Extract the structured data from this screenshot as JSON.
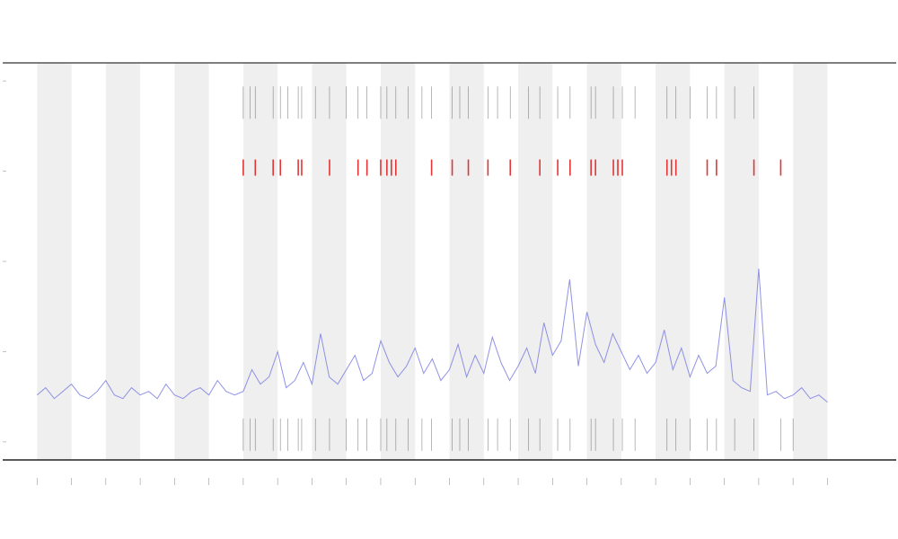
{
  "chart_data": {
    "type": "line",
    "xlim": [
      -1,
      25
    ],
    "ylim": [
      -5,
      105
    ],
    "xticks": [
      0,
      1,
      2,
      3,
      4,
      5,
      6,
      7,
      8,
      9,
      10,
      11,
      12,
      13,
      14,
      15,
      16,
      17,
      18,
      19,
      20,
      21,
      22,
      23
    ],
    "yticks": [
      0,
      25,
      50,
      75,
      100
    ],
    "shade_color": "#efefef",
    "line": {
      "color": "#7b7fe0",
      "step": 0.25,
      "start": 0,
      "values": [
        13,
        15,
        12,
        14,
        16,
        13,
        12,
        14,
        17,
        13,
        12,
        15,
        13,
        14,
        12,
        16,
        13,
        12,
        14,
        15,
        13,
        17,
        14,
        13,
        14,
        20,
        16,
        18,
        25,
        15,
        17,
        22,
        16,
        30,
        18,
        16,
        20,
        24,
        17,
        19,
        28,
        22,
        18,
        21,
        26,
        19,
        23,
        17,
        20,
        27,
        18,
        24,
        19,
        29,
        22,
        17,
        21,
        26,
        19,
        33,
        24,
        28,
        45,
        21,
        36,
        27,
        22,
        30,
        25,
        20,
        24,
        19,
        22,
        31,
        20,
        26,
        18,
        24,
        19,
        21,
        40,
        17,
        15,
        14,
        48,
        13,
        14,
        12,
        13,
        15,
        12,
        13,
        11
      ]
    },
    "events": [
      {
        "color": "#e02020",
        "x": [
          6.0,
          6.35,
          6.87,
          7.08,
          7.6,
          7.7,
          8.51,
          9.34,
          9.6,
          10.0,
          10.18,
          10.31,
          10.44,
          11.48,
          12.08,
          12.55,
          13.12,
          13.77,
          14.63,
          15.15,
          15.51,
          16.12,
          16.25,
          16.77,
          16.9,
          17.03,
          18.33,
          18.46,
          18.59,
          19.5,
          19.77,
          20.86,
          21.64
        ],
        "values": [
          76,
          76,
          76,
          76,
          76,
          76,
          76,
          76,
          76,
          76,
          76,
          76,
          76,
          76,
          76,
          76,
          76,
          76,
          76,
          76,
          76,
          76,
          76,
          76,
          76,
          76,
          76,
          76,
          76,
          76,
          76,
          76,
          76
        ]
      },
      {
        "color": "#555555",
        "x": [
          6.0,
          6.2,
          6.35,
          6.87,
          7.08,
          7.3,
          7.6,
          7.7,
          8.1,
          8.51,
          9.0,
          9.34,
          9.6,
          10.0,
          10.18,
          10.44,
          10.8,
          11.2,
          11.48,
          12.08,
          12.3,
          12.55,
          13.12,
          13.4,
          13.77,
          14.3,
          14.63,
          15.15,
          15.51,
          16.12,
          16.25,
          16.77,
          17.03,
          17.4,
          18.33,
          18.59,
          19.0,
          19.5,
          19.77,
          20.3,
          20.86
        ],
        "values": [
          94,
          94,
          94,
          94,
          94,
          94,
          94,
          94,
          94,
          94,
          94,
          94,
          94,
          94,
          94,
          94,
          94,
          94,
          94,
          94,
          94,
          94,
          94,
          94,
          94,
          94,
          94,
          94,
          94,
          94,
          94,
          94,
          94,
          94,
          94,
          94,
          94,
          94,
          94,
          94,
          94
        ]
      },
      {
        "color": "#555555",
        "x": [
          6.0,
          6.2,
          6.35,
          6.87,
          7.08,
          7.3,
          7.6,
          7.7,
          8.1,
          8.51,
          9.0,
          9.34,
          9.6,
          10.0,
          10.18,
          10.44,
          10.8,
          11.2,
          11.48,
          12.08,
          12.3,
          12.55,
          13.12,
          13.4,
          13.77,
          14.3,
          14.63,
          15.15,
          15.51,
          16.12,
          16.25,
          16.77,
          17.03,
          17.4,
          18.33,
          18.59,
          19.0,
          19.5,
          19.77,
          20.3,
          20.86,
          21.64,
          22.0
        ],
        "values": [
          2,
          2,
          2,
          2,
          2,
          2,
          2,
          2,
          2,
          2,
          2,
          2,
          2,
          2,
          2,
          2,
          2,
          2,
          2,
          2,
          2,
          2,
          2,
          2,
          2,
          2,
          2,
          2,
          2,
          2,
          2,
          2,
          2,
          2,
          2,
          2,
          2,
          2,
          2,
          2,
          2,
          2,
          2
        ]
      }
    ]
  }
}
